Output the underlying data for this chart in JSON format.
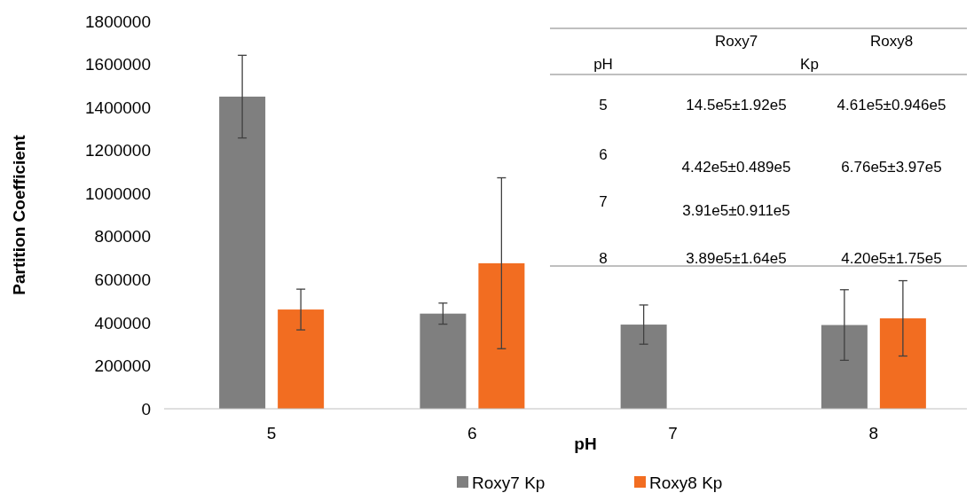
{
  "chart_data": {
    "type": "bar",
    "xlabel": "pH",
    "ylabel": "Partition Coefficient",
    "categories": [
      "5",
      "6",
      "7",
      "8"
    ],
    "series": [
      {
        "name": "Roxy7 Kp",
        "color": "#7f7f7f",
        "values": [
          1450000,
          442000,
          391000,
          389000
        ],
        "errors": [
          192000,
          48900,
          91100,
          164000
        ]
      },
      {
        "name": "Roxy8 Kp",
        "color": "#f26d21",
        "values": [
          461000,
          676000,
          null,
          420000
        ],
        "errors": [
          94600,
          397000,
          null,
          175000
        ]
      }
    ],
    "ylim": [
      0,
      1800000
    ],
    "yticks": [
      0,
      200000,
      400000,
      600000,
      800000,
      1000000,
      1200000,
      1400000,
      1600000,
      1800000
    ],
    "annotations": [
      "Roxy7",
      "Roxy8",
      "pH",
      "Kp",
      "5",
      "14.5e5±1.92e5",
      "4.61e5±0.946e5",
      "6",
      "4.42e5±0.489e5",
      "6.76e5±3.97e5",
      "7",
      "3.91e5±0.911e5",
      "8",
      "3.89e5±1.64e5",
      "4.20e5±1.75e5"
    ],
    "legend": "bottom",
    "grid": false
  }
}
